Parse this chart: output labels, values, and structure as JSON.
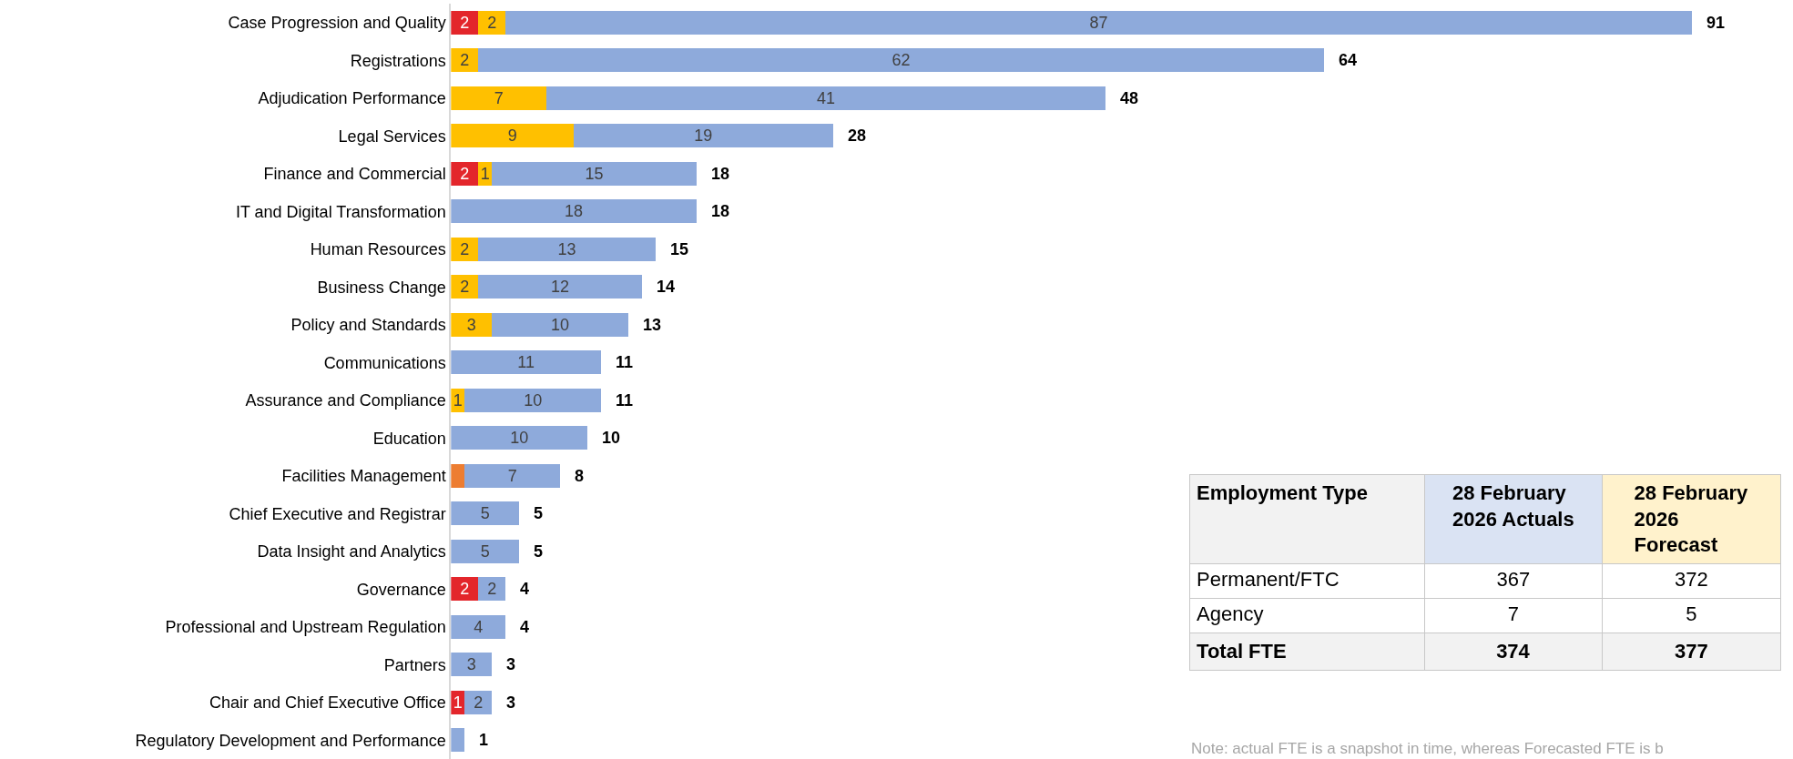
{
  "chart_data": [
    {
      "type": "bar",
      "orientation": "horizontal",
      "stacked": true,
      "tick_labels": "y",
      "categories": [
        "Case Progression and Quality",
        "Registrations",
        "Adjudication Performance",
        "Legal Services",
        "Finance and Commercial",
        "IT and Digital Transformation",
        "Human Resources",
        "Business Change",
        "Policy and Standards",
        "Communications",
        "Assurance and Compliance",
        "Education",
        "Facilities Management",
        "Chief Executive and Registrar",
        "Data Insight and Analytics",
        "Governance",
        "Professional and Upstream Regulation",
        "Partners",
        "Chair and Chief Executive Office",
        "Regulatory Development and Performance"
      ],
      "series": [
        {
          "color": "#e3262b",
          "values": [
            2,
            null,
            null,
            null,
            2,
            null,
            null,
            null,
            null,
            null,
            null,
            null,
            null,
            null,
            null,
            2,
            null,
            null,
            1,
            null
          ],
          "value_labels": [
            "2",
            null,
            null,
            null,
            "2",
            null,
            null,
            null,
            null,
            null,
            null,
            null,
            null,
            null,
            null,
            "2",
            null,
            null,
            "1",
            null
          ]
        },
        {
          "color": "#ffc000",
          "values": [
            2,
            2,
            7,
            9,
            1,
            null,
            2,
            2,
            3,
            null,
            1,
            null,
            null,
            null,
            null,
            null,
            null,
            null,
            null,
            null
          ],
          "value_labels": [
            "2",
            "2",
            "7",
            "9",
            "1",
            null,
            "2",
            "2",
            "3",
            null,
            "1",
            null,
            null,
            null,
            null,
            null,
            null,
            null,
            null,
            null
          ]
        },
        {
          "color": "#ed7d31",
          "values": [
            null,
            null,
            null,
            null,
            null,
            null,
            null,
            null,
            null,
            null,
            null,
            null,
            1,
            null,
            null,
            null,
            null,
            null,
            null,
            null
          ],
          "value_labels": [
            null,
            null,
            null,
            null,
            null,
            null,
            null,
            null,
            null,
            null,
            null,
            null,
            null,
            null,
            null,
            null,
            null,
            null,
            null,
            null
          ]
        },
        {
          "color": "#8eaadb",
          "values": [
            87,
            62,
            41,
            19,
            15,
            18,
            13,
            12,
            10,
            11,
            10,
            10,
            7,
            5,
            5,
            2,
            4,
            3,
            2,
            1
          ],
          "value_labels": [
            "87",
            "62",
            "41",
            "19",
            "15",
            "18",
            "13",
            "12",
            "10",
            "11",
            "10",
            "10",
            "7",
            "5",
            "5",
            "2",
            "4",
            "3",
            "2",
            null
          ]
        }
      ],
      "totals": [
        "91",
        "64",
        "48",
        "28",
        "18",
        "18",
        "15",
        "14",
        "13",
        "11",
        "11",
        "10",
        "8",
        "5",
        "5",
        "4",
        "4",
        "3",
        "3",
        "1"
      ]
    },
    {
      "type": "other",
      "annotations": [
        "Employment Type",
        "28 February 2026 Actuals",
        "28 February 2026 Forecast",
        "Permanent/FTC",
        "367",
        "372",
        "Agency",
        "7",
        "5",
        "Total FTE",
        "374",
        "377",
        "Note: actual FTE is a snapshot in time, whereas Forecasted FTE is b"
      ]
    }
  ]
}
